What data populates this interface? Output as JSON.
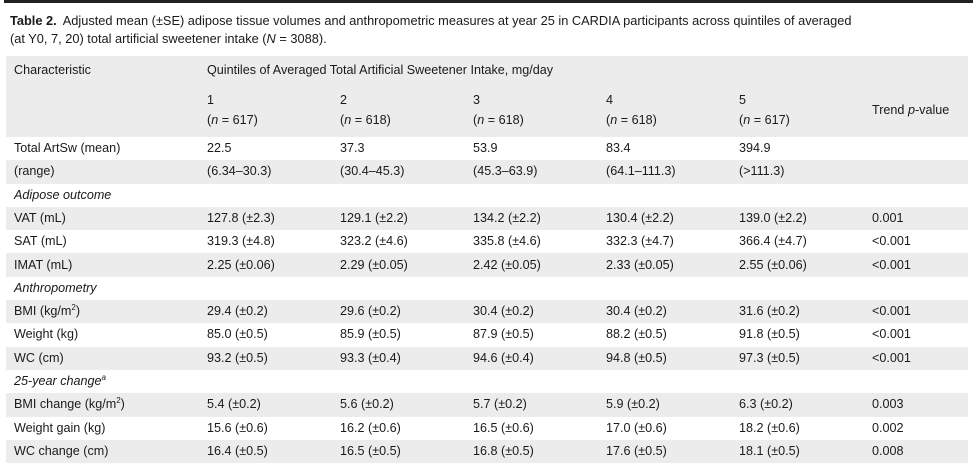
{
  "caption": {
    "label": "Table 2.",
    "text_a": "Adjusted mean (±SE) adipose tissue volumes and anthropometric measures at year 25 in CARDIA participants across quintiles of averaged",
    "text_b": "(at Y0, 7, 20) total artificial sweetener intake (",
    "n_sym": "N",
    "text_c": " = 3088)."
  },
  "header": {
    "characteristic": "Characteristic",
    "group": "Quintiles of Averaged Total Artificial Sweetener Intake, mg/day",
    "trend_a": "Trend ",
    "trend_p": "p",
    "trend_b": "-value",
    "quintiles": [
      {
        "num": "1",
        "n_open": "(",
        "n_sym": "n",
        "n_close": " = 617)"
      },
      {
        "num": "2",
        "n_open": "(",
        "n_sym": "n",
        "n_close": " = 618)"
      },
      {
        "num": "3",
        "n_open": "(",
        "n_sym": "n",
        "n_close": " = 618)"
      },
      {
        "num": "4",
        "n_open": "(",
        "n_sym": "n",
        "n_close": " = 618)"
      },
      {
        "num": "5",
        "n_open": "(",
        "n_sym": "n",
        "n_close": " = 617)"
      }
    ]
  },
  "rows": [
    {
      "label": "Total ArtSw (mean)",
      "sup": "",
      "vals": [
        "22.5",
        "37.3",
        "53.9",
        "83.4",
        "394.9"
      ],
      "trend": ""
    },
    {
      "label": "(range)",
      "sup": "",
      "vals": [
        "(6.34–30.3)",
        "(30.4–45.3)",
        "(45.3–63.9)",
        "(64.1–111.3)",
        "(>111.3)"
      ],
      "trend": ""
    },
    {
      "section": "Adipose outcome"
    },
    {
      "label": "VAT (mL)",
      "sup": "",
      "vals": [
        "127.8 (±2.3)",
        "129.1 (±2.2)",
        "134.2 (±2.2)",
        "130.4 (±2.2)",
        "139.0 (±2.2)"
      ],
      "trend": "0.001",
      "indent": true
    },
    {
      "label": "SAT (mL)",
      "sup": "",
      "vals": [
        "319.3 (±4.8)",
        "323.2 (±4.6)",
        "335.8 (±4.6)",
        "332.3 (±4.7)",
        "366.4 (±4.7)"
      ],
      "trend": "<0.001",
      "indent": true
    },
    {
      "label": "IMAT (mL)",
      "sup": "",
      "vals": [
        "2.25 (±0.06)",
        "2.29 (±0.05)",
        "2.42 (±0.05)",
        "2.33 (±0.05)",
        "2.55 (±0.06)"
      ],
      "trend": "<0.001",
      "indent": true
    },
    {
      "section": "Anthropometry"
    },
    {
      "label": "BMI (kg/m",
      "sup": "2",
      "label_end": ")",
      "vals": [
        "29.4 (±0.2)",
        "29.6 (±0.2)",
        "30.4 (±0.2)",
        "30.4 (±0.2)",
        "31.6 (±0.2)"
      ],
      "trend": "<0.001",
      "indent": true
    },
    {
      "label": "Weight (kg)",
      "sup": "",
      "vals": [
        "85.0 (±0.5)",
        "85.9 (±0.5)",
        "87.9 (±0.5)",
        "88.2 (±0.5)",
        "91.8 (±0.5)"
      ],
      "trend": "<0.001",
      "indent": true
    },
    {
      "label": "WC (cm)",
      "sup": "",
      "vals": [
        "93.2 (±0.5)",
        "93.3 (±0.4)",
        "94.6 (±0.4)",
        "94.8 (±0.5)",
        "97.3 (±0.5)"
      ],
      "trend": "<0.001",
      "indent": true
    },
    {
      "section": "25-year change",
      "section_sup": "a"
    },
    {
      "label": "BMI change (kg/m",
      "sup": "2",
      "label_end": ")",
      "vals": [
        "5.4 (±0.2)",
        "5.6 (±0.2)",
        "5.7 (±0.2)",
        "5.9 (±0.2)",
        "6.3 (±0.2)"
      ],
      "trend": "0.003",
      "indent": true
    },
    {
      "label": "Weight gain (kg)",
      "sup": "",
      "vals": [
        "15.6 (±0.6)",
        "16.2 (±0.6)",
        "16.5 (±0.6)",
        "17.0 (±0.6)",
        "18.2 (±0.6)"
      ],
      "trend": "0.002",
      "indent": true
    },
    {
      "label": "WC change (cm)",
      "sup": "",
      "vals": [
        "16.4 (±0.5)",
        "16.5 (±0.5)",
        "16.8 (±0.5)",
        "17.6 (±0.5)",
        "18.1 (±0.5)"
      ],
      "trend": "0.008",
      "indent": true
    }
  ]
}
